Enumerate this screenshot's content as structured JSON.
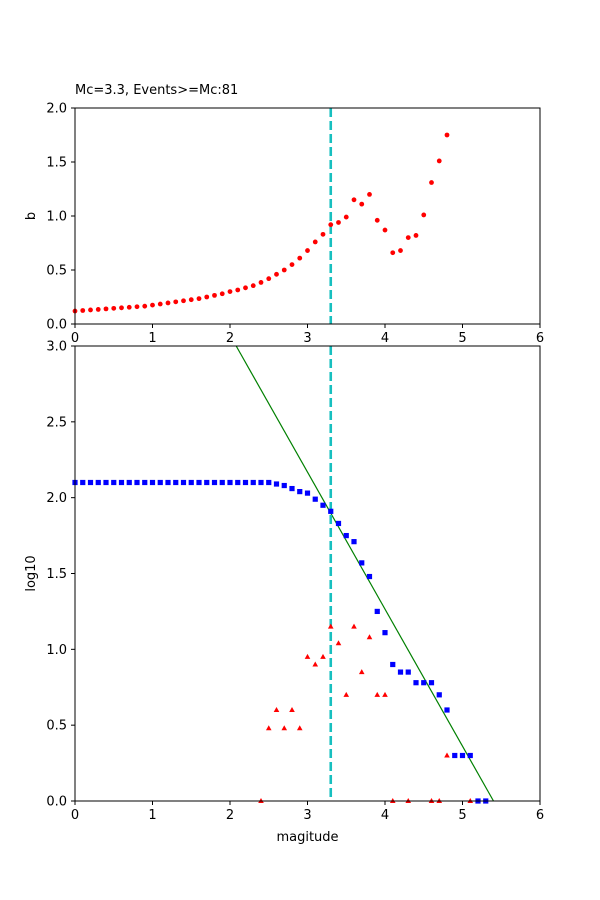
{
  "chart_data": [
    {
      "type": "scatter",
      "title": "Mc=3.3, Events>=Mc:81",
      "xlabel": "",
      "ylabel": "b",
      "xlim": [
        0,
        6
      ],
      "ylim": [
        0,
        2.0
      ],
      "xticks": [
        "0",
        "1",
        "2",
        "3",
        "4",
        "5",
        "6"
      ],
      "yticks": [
        "0.0",
        "0.5",
        "1.0",
        "1.5",
        "2.0"
      ],
      "mc_line": {
        "x": 3.3,
        "color": "#17bfbf",
        "style": "dashed"
      },
      "series": [
        {
          "marker": "circle",
          "color": "#ff0000",
          "x": [
            0.0,
            0.1,
            0.2,
            0.3,
            0.4,
            0.5,
            0.6,
            0.7,
            0.8,
            0.9,
            1.0,
            1.1,
            1.2,
            1.3,
            1.4,
            1.5,
            1.6,
            1.7,
            1.8,
            1.9,
            2.0,
            2.1,
            2.2,
            2.3,
            2.4,
            2.5,
            2.6,
            2.7,
            2.8,
            2.9,
            3.0,
            3.1,
            3.2,
            3.3,
            3.4,
            3.5,
            3.6,
            3.7,
            3.8,
            3.9,
            4.0,
            4.1,
            4.2,
            4.3,
            4.4,
            4.5,
            4.6,
            4.7,
            4.8
          ],
          "y": [
            0.12,
            0.125,
            0.13,
            0.135,
            0.14,
            0.145,
            0.15,
            0.155,
            0.16,
            0.165,
            0.175,
            0.185,
            0.195,
            0.205,
            0.215,
            0.225,
            0.235,
            0.25,
            0.265,
            0.28,
            0.3,
            0.315,
            0.335,
            0.355,
            0.385,
            0.42,
            0.46,
            0.5,
            0.55,
            0.61,
            0.68,
            0.76,
            0.83,
            0.92,
            0.94,
            0.99,
            1.15,
            1.11,
            1.2,
            0.96,
            0.87,
            0.66,
            0.68,
            0.8,
            0.82,
            1.01,
            1.31,
            1.51,
            1.75
          ]
        }
      ]
    },
    {
      "type": "scatter",
      "title": "",
      "xlabel": "magitude",
      "ylabel": "log10",
      "xlim": [
        0,
        6
      ],
      "ylim": [
        0,
        3.0
      ],
      "xticks": [
        "0",
        "1",
        "2",
        "3",
        "4",
        "5",
        "6"
      ],
      "yticks": [
        "0.0",
        "0.5",
        "1.0",
        "1.5",
        "2.0",
        "2.5",
        "3.0"
      ],
      "mc_line": {
        "x": 3.3,
        "color": "#17bfbf",
        "style": "dashed"
      },
      "fit_line": {
        "x": [
          2.08,
          5.4
        ],
        "y": [
          3.0,
          0.0
        ],
        "color": "#008000"
      },
      "series": [
        {
          "marker": "square",
          "color": "#0000ff",
          "x": [
            0.0,
            0.1,
            0.2,
            0.3,
            0.4,
            0.5,
            0.6,
            0.7,
            0.8,
            0.9,
            1.0,
            1.1,
            1.2,
            1.3,
            1.4,
            1.5,
            1.6,
            1.7,
            1.8,
            1.9,
            2.0,
            2.1,
            2.2,
            2.3,
            2.4,
            2.5,
            2.6,
            2.7,
            2.8,
            2.9,
            3.0,
            3.1,
            3.2,
            3.3,
            3.4,
            3.5,
            3.6,
            3.7,
            3.8,
            3.9,
            4.0,
            4.1,
            4.2,
            4.3,
            4.4,
            4.5,
            4.6,
            4.7,
            4.8,
            4.9,
            5.0,
            5.1,
            5.2,
            5.3
          ],
          "y": [
            2.1,
            2.1,
            2.1,
            2.1,
            2.1,
            2.1,
            2.1,
            2.1,
            2.1,
            2.1,
            2.1,
            2.1,
            2.1,
            2.1,
            2.1,
            2.1,
            2.1,
            2.1,
            2.1,
            2.1,
            2.1,
            2.1,
            2.1,
            2.1,
            2.1,
            2.1,
            2.09,
            2.08,
            2.06,
            2.04,
            2.03,
            1.99,
            1.95,
            1.91,
            1.83,
            1.75,
            1.71,
            1.57,
            1.48,
            1.25,
            1.11,
            0.9,
            0.85,
            0.85,
            0.78,
            0.78,
            0.78,
            0.7,
            0.6,
            0.3,
            0.3,
            0.3,
            0.0,
            0.0
          ]
        },
        {
          "marker": "triangle",
          "color": "#ff0000",
          "x": [
            2.4,
            2.5,
            2.6,
            2.7,
            2.8,
            2.9,
            3.0,
            3.1,
            3.2,
            3.3,
            3.4,
            3.5,
            3.6,
            3.7,
            3.8,
            3.9,
            4.0,
            4.1,
            4.3,
            4.6,
            4.7,
            4.8,
            5.1
          ],
          "y": [
            0.0,
            0.48,
            0.6,
            0.48,
            0.6,
            0.48,
            0.95,
            0.9,
            0.95,
            1.15,
            1.04,
            0.7,
            1.15,
            0.85,
            1.08,
            0.7,
            0.7,
            0.0,
            0.0,
            0.0,
            0.0,
            0.3,
            0.0
          ]
        }
      ]
    }
  ]
}
